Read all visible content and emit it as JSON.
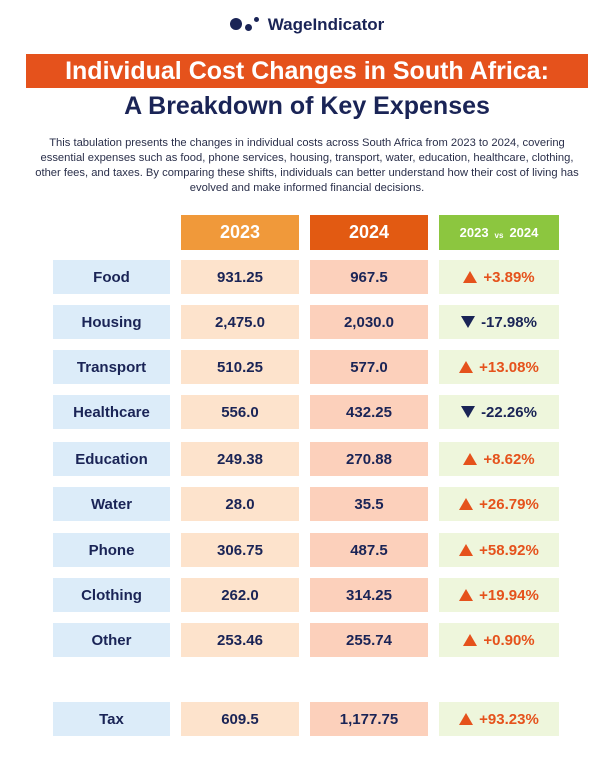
{
  "brand": {
    "name": "WageIndicator"
  },
  "header": {
    "title": "Individual Cost Changes in South Africa:",
    "subtitle": "A Breakdown of Key Expenses"
  },
  "description": "This tabulation presents the changes in individual costs across South Africa from 2023 to 2024, covering essential expenses such as food, phone services, housing, transport, water, education, healthcare, clothing, other fees, and taxes. By comparing these shifts, individuals can better understand how their cost of living has evolved and make informed financial decisions.",
  "columns": {
    "y2023": "2023",
    "y2024": "2024",
    "cmp_left": "2023",
    "cmp_vs": "vs",
    "cmp_right": "2024"
  },
  "colors": {
    "orange": "#e5521c",
    "navy": "#1a2456",
    "green": "#8cc63f"
  },
  "rows": [
    {
      "label": "Food",
      "y2023": "931.25",
      "y2024": "967.5",
      "change": "+3.89%",
      "direction": "up"
    },
    {
      "label": "Housing",
      "y2023": "2,475.0",
      "y2024": "2,030.0",
      "change": "-17.98%",
      "direction": "down"
    },
    {
      "label": "Transport",
      "y2023": "510.25",
      "y2024": "577.0",
      "change": "+13.08%",
      "direction": "up"
    },
    {
      "label": "Healthcare",
      "y2023": "556.0",
      "y2024": "432.25",
      "change": "-22.26%",
      "direction": "down"
    },
    {
      "label": "Education",
      "y2023": "249.38",
      "y2024": "270.88",
      "change": "+8.62%",
      "direction": "up"
    },
    {
      "label": "Water",
      "y2023": "28.0",
      "y2024": "35.5",
      "change": "+26.79%",
      "direction": "up"
    },
    {
      "label": "Phone",
      "y2023": "306.75",
      "y2024": "487.5",
      "change": "+58.92%",
      "direction": "up"
    },
    {
      "label": "Clothing",
      "y2023": "262.0",
      "y2024": "314.25",
      "change": "+19.94%",
      "direction": "up"
    },
    {
      "label": "Other",
      "y2023": "253.46",
      "y2024": "255.74",
      "change": "+0.90%",
      "direction": "up"
    },
    {
      "label": "Tax",
      "y2023": "609.5",
      "y2024": "1,177.75",
      "change": "+93.23%",
      "direction": "up"
    }
  ]
}
